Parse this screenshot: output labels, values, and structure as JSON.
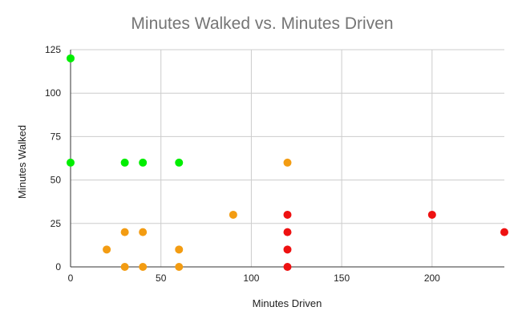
{
  "chart_data": {
    "type": "scatter",
    "title": "Minutes Walked vs. Minutes Driven",
    "xlabel": "Minutes Driven",
    "ylabel": "Minutes Walked",
    "xlim": [
      0,
      240
    ],
    "ylim": [
      0,
      125
    ],
    "xticks": [
      0,
      50,
      100,
      150,
      200
    ],
    "yticks": [
      0,
      25,
      50,
      75,
      100,
      125
    ],
    "grid": true,
    "legend": "none",
    "colors": {
      "green": "#00ee00",
      "orange": "#f39c12",
      "red": "#ee1111"
    },
    "points": [
      {
        "x": 0,
        "y": 120,
        "color": "green"
      },
      {
        "x": 0,
        "y": 60,
        "color": "green"
      },
      {
        "x": 30,
        "y": 60,
        "color": "green"
      },
      {
        "x": 40,
        "y": 60,
        "color": "green"
      },
      {
        "x": 60,
        "y": 60,
        "color": "green"
      },
      {
        "x": 120,
        "y": 60,
        "color": "orange"
      },
      {
        "x": 90,
        "y": 30,
        "color": "orange"
      },
      {
        "x": 30,
        "y": 20,
        "color": "orange"
      },
      {
        "x": 40,
        "y": 20,
        "color": "orange"
      },
      {
        "x": 20,
        "y": 10,
        "color": "orange"
      },
      {
        "x": 60,
        "y": 10,
        "color": "orange"
      },
      {
        "x": 30,
        "y": 0,
        "color": "orange"
      },
      {
        "x": 40,
        "y": 0,
        "color": "orange"
      },
      {
        "x": 60,
        "y": 0,
        "color": "orange"
      },
      {
        "x": 120,
        "y": 30,
        "color": "red"
      },
      {
        "x": 120,
        "y": 20,
        "color": "red"
      },
      {
        "x": 120,
        "y": 10,
        "color": "red"
      },
      {
        "x": 120,
        "y": 0,
        "color": "red"
      },
      {
        "x": 200,
        "y": 30,
        "color": "red"
      },
      {
        "x": 240,
        "y": 20,
        "color": "red"
      }
    ]
  }
}
